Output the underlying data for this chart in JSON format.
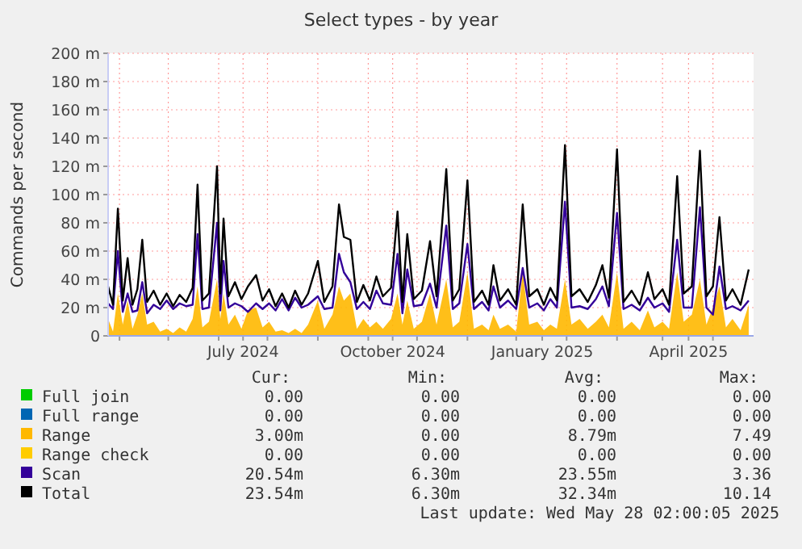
{
  "chart_data": {
    "type": "area",
    "title": "Select types - by year",
    "ylabel": "Commands per second",
    "x": [
      "2024-04-09",
      "2024-04-12",
      "2024-04-15",
      "2024-04-18",
      "2024-04-21",
      "2024-04-24",
      "2024-04-27",
      "2024-04-30",
      "2024-05-03",
      "2024-05-07",
      "2024-05-11",
      "2024-05-15",
      "2024-05-19",
      "2024-05-23",
      "2024-05-27",
      "2024-05-31",
      "2024-06-03",
      "2024-06-06",
      "2024-06-10",
      "2024-06-15",
      "2024-06-17",
      "2024-06-19",
      "2024-06-22",
      "2024-06-26",
      "2024-06-30",
      "2024-07-04",
      "2024-07-09",
      "2024-07-13",
      "2024-07-17",
      "2024-07-21",
      "2024-07-25",
      "2024-07-29",
      "2024-08-02",
      "2024-08-06",
      "2024-08-10",
      "2024-08-16",
      "2024-08-20",
      "2024-08-25",
      "2024-08-29",
      "2024-09-01",
      "2024-09-05",
      "2024-09-09",
      "2024-09-13",
      "2024-09-17",
      "2024-09-21",
      "2024-09-25",
      "2024-09-30",
      "2024-10-04",
      "2024-10-07",
      "2024-10-10",
      "2024-10-14",
      "2024-10-19",
      "2024-10-24",
      "2024-10-28",
      "2024-11-03",
      "2024-11-07",
      "2024-11-11",
      "2024-11-16",
      "2024-11-20",
      "2024-11-25",
      "2024-11-29",
      "2024-12-02",
      "2024-12-06",
      "2024-12-11",
      "2024-12-16",
      "2024-12-20",
      "2024-12-24",
      "2024-12-29",
      "2025-01-02",
      "2025-01-06",
      "2025-01-10",
      "2025-01-15",
      "2025-01-19",
      "2025-01-24",
      "2025-01-29",
      "2025-02-03",
      "2025-02-07",
      "2025-02-11",
      "2025-02-16",
      "2025-02-20",
      "2025-02-25",
      "2025-03-02",
      "2025-03-07",
      "2025-03-11",
      "2025-03-16",
      "2025-03-20",
      "2025-03-25",
      "2025-03-29",
      "2025-04-03",
      "2025-04-08",
      "2025-04-12",
      "2025-04-16",
      "2025-04-20",
      "2025-04-24",
      "2025-04-28",
      "2025-05-03",
      "2025-05-08"
    ],
    "series": [
      {
        "name": "Full join",
        "type": "line",
        "color": "#00cc00",
        "values": [
          null,
          null,
          null,
          null,
          null,
          null,
          null,
          null,
          null,
          null,
          null,
          null,
          null,
          null,
          null,
          null,
          null,
          null,
          null,
          null,
          null,
          null,
          null,
          null,
          null,
          null,
          null,
          null,
          null,
          null,
          null,
          null,
          null,
          null,
          null,
          null,
          null,
          null,
          null,
          null,
          null,
          null,
          null,
          null,
          null,
          null,
          null,
          null,
          null,
          null,
          null,
          null,
          null,
          null,
          null,
          null,
          null,
          null,
          null,
          null,
          null,
          null,
          null,
          null,
          null,
          null,
          null,
          null,
          null,
          null,
          null,
          null,
          null,
          null,
          null,
          null,
          null,
          null,
          null,
          null,
          null,
          null,
          null,
          null,
          null,
          null,
          null,
          null,
          null,
          null,
          null,
          null,
          null,
          null,
          null,
          null,
          null
        ]
      },
      {
        "name": "Full range",
        "type": "line",
        "color": "#0066b3",
        "values": [
          null,
          null,
          null,
          null,
          null,
          null,
          null,
          null,
          null,
          null,
          null,
          null,
          null,
          null,
          null,
          null,
          null,
          null,
          null,
          null,
          null,
          null,
          null,
          null,
          null,
          null,
          null,
          null,
          null,
          null,
          null,
          null,
          null,
          null,
          null,
          null,
          null,
          null,
          null,
          null,
          null,
          null,
          null,
          null,
          null,
          null,
          null,
          null,
          null,
          null,
          null,
          null,
          null,
          null,
          null,
          null,
          null,
          null,
          null,
          null,
          null,
          null,
          null,
          null,
          null,
          null,
          null,
          null,
          null,
          null,
          null,
          null,
          null,
          null,
          null,
          null,
          null,
          null,
          null,
          null,
          null,
          null,
          null,
          null,
          null,
          null,
          null,
          null,
          null,
          null,
          null,
          null,
          null,
          null,
          null,
          null,
          null
        ]
      },
      {
        "name": "Range",
        "type": "area",
        "color": "#ffb800",
        "values": [
          12,
          3,
          30,
          8,
          25,
          5,
          15,
          30,
          8,
          10,
          3,
          5,
          2,
          6,
          3,
          12,
          35,
          6,
          10,
          40,
          12,
          30,
          8,
          15,
          5,
          18,
          20,
          6,
          10,
          3,
          4,
          2,
          5,
          2,
          8,
          25,
          5,
          15,
          35,
          25,
          30,
          5,
          12,
          6,
          10,
          5,
          12,
          30,
          8,
          25,
          5,
          10,
          30,
          8,
          40,
          6,
          10,
          45,
          5,
          8,
          4,
          15,
          5,
          8,
          3,
          45,
          8,
          10,
          4,
          8,
          5,
          40,
          8,
          12,
          5,
          10,
          15,
          6,
          45,
          5,
          10,
          4,
          18,
          6,
          10,
          5,
          45,
          10,
          15,
          40,
          8,
          20,
          35,
          6,
          12,
          4,
          22
        ]
      },
      {
        "name": "Range check",
        "type": "line",
        "color": "#ffcc00",
        "values": [
          null,
          null,
          null,
          null,
          null,
          null,
          null,
          null,
          null,
          null,
          null,
          null,
          null,
          null,
          null,
          null,
          null,
          null,
          null,
          null,
          null,
          null,
          null,
          null,
          null,
          null,
          null,
          null,
          null,
          null,
          null,
          null,
          null,
          null,
          null,
          null,
          null,
          null,
          null,
          null,
          null,
          null,
          null,
          null,
          null,
          null,
          null,
          null,
          null,
          null,
          null,
          null,
          null,
          null,
          null,
          null,
          null,
          null,
          null,
          null,
          null,
          null,
          null,
          null,
          null,
          null,
          null,
          null,
          null,
          null,
          null,
          null,
          null,
          null,
          null,
          null,
          null,
          null,
          null,
          null,
          null,
          null,
          null,
          null,
          null,
          null,
          null,
          null,
          null,
          null,
          null,
          null,
          null,
          null,
          null,
          null,
          null
        ]
      },
      {
        "name": "Scan",
        "type": "line",
        "color": "#330099",
        "values": [
          23,
          19,
          60,
          17,
          30,
          17,
          18,
          38,
          16,
          22,
          19,
          25,
          19,
          23,
          21,
          22,
          72,
          19,
          20,
          80,
          18,
          53,
          20,
          23,
          21,
          17,
          23,
          19,
          23,
          18,
          26,
          18,
          27,
          20,
          22,
          28,
          19,
          20,
          58,
          45,
          38,
          19,
          24,
          19,
          32,
          23,
          22,
          58,
          16,
          47,
          21,
          22,
          37,
          20,
          78,
          19,
          23,
          65,
          19,
          24,
          18,
          35,
          20,
          25,
          19,
          48,
          20,
          23,
          18,
          26,
          20,
          95,
          20,
          21,
          19,
          26,
          35,
          21,
          87,
          19,
          22,
          18,
          27,
          20,
          23,
          17,
          68,
          20,
          20,
          91,
          20,
          15,
          49,
          19,
          21,
          18,
          25
        ]
      },
      {
        "name": "Total",
        "type": "line",
        "color": "#000000",
        "values": [
          35,
          22,
          90,
          25,
          55,
          22,
          33,
          68,
          24,
          32,
          22,
          30,
          21,
          29,
          24,
          34,
          107,
          25,
          30,
          120,
          30,
          83,
          28,
          38,
          26,
          35,
          43,
          25,
          33,
          21,
          30,
          20,
          32,
          22,
          30,
          53,
          24,
          35,
          93,
          70,
          68,
          24,
          36,
          25,
          42,
          28,
          34,
          88,
          24,
          72,
          26,
          32,
          67,
          28,
          118,
          25,
          33,
          110,
          24,
          32,
          22,
          50,
          25,
          33,
          22,
          93,
          28,
          33,
          22,
          34,
          25,
          135,
          28,
          33,
          24,
          36,
          50,
          27,
          132,
          24,
          32,
          22,
          45,
          26,
          33,
          22,
          113,
          30,
          35,
          131,
          28,
          35,
          84,
          25,
          33,
          22,
          47
        ]
      }
    ],
    "xlim": [
      "2024-04-09",
      "2025-05-11"
    ],
    "xticks": [
      {
        "value": "2024-04-16",
        "label": null
      },
      {
        "value": "2024-05-16",
        "label": null
      },
      {
        "value": "2024-06-16",
        "label": null
      },
      {
        "value": "2024-07-01",
        "label": "July 2024"
      },
      {
        "value": "2024-07-16",
        "label": null
      },
      {
        "value": "2024-08-16",
        "label": null
      },
      {
        "value": "2024-09-16",
        "label": null
      },
      {
        "value": "2024-10-01",
        "label": "October 2024"
      },
      {
        "value": "2024-10-16",
        "label": null
      },
      {
        "value": "2024-11-16",
        "label": null
      },
      {
        "value": "2024-12-16",
        "label": null
      },
      {
        "value": "2025-01-01",
        "label": "January 2025"
      },
      {
        "value": "2025-01-16",
        "label": null
      },
      {
        "value": "2025-02-16",
        "label": null
      },
      {
        "value": "2025-03-16",
        "label": null
      },
      {
        "value": "2025-04-01",
        "label": "April 2025"
      },
      {
        "value": "2025-04-16",
        "label": null
      }
    ],
    "ylim": [
      0,
      200
    ],
    "yticks": [
      0,
      {
        "value": 20,
        "label": "20 m"
      },
      {
        "value": 40,
        "label": "40 m"
      },
      {
        "value": 60,
        "label": "60 m"
      },
      {
        "value": 80,
        "label": "80 m"
      },
      {
        "value": 100,
        "label": "100 m"
      },
      {
        "value": 120,
        "label": "120 m"
      },
      {
        "value": 140,
        "label": "140 m"
      },
      {
        "value": 160,
        "label": "160 m"
      },
      {
        "value": 180,
        "label": "180 m"
      },
      {
        "value": 200,
        "label": "200 m"
      }
    ],
    "grid": true,
    "legend": "bottom",
    "annotations": [
      "Cur:",
      "Min:",
      "Avg:",
      "Max:",
      "0.00",
      "0.00",
      "0.00",
      "0.00",
      "0.00",
      "0.00",
      "0.00",
      "0.00",
      "3.00m",
      "0.00",
      "8.79m",
      "7.49",
      "0.00",
      "0.00",
      "0.00",
      "0.00",
      "20.54m",
      "6.30m",
      "23.55m",
      "3.36",
      "23.54m",
      "6.30m",
      "32.34m",
      "10.14",
      "Last update: Wed May 28 02:00:05 2025"
    ]
  }
}
